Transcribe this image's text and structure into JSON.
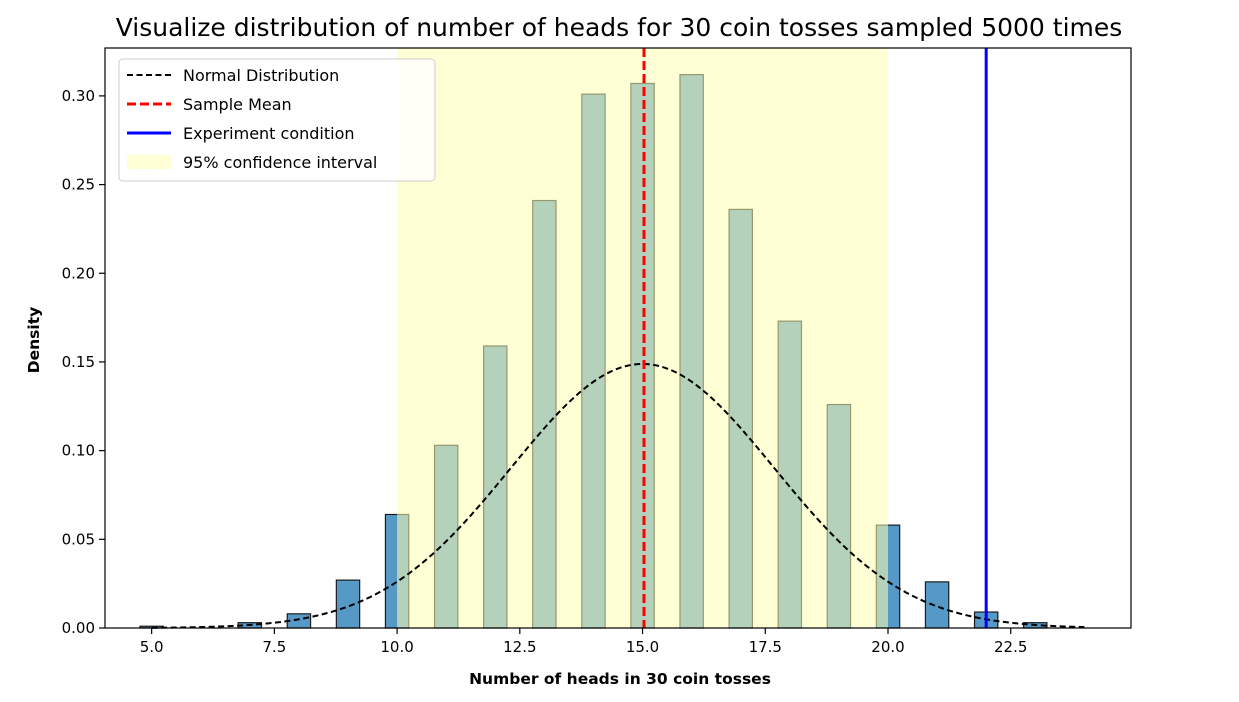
{
  "chart_data": {
    "type": "bar",
    "title": "Visualize distribution of number of heads for 30 coin tosses sampled 5000 times",
    "xlabel": "Number of heads in 30 coin tosses",
    "ylabel": "Density",
    "xlim": [
      4.05,
      24.95
    ],
    "ylim": [
      0,
      0.327
    ],
    "xticks": [
      5.0,
      7.5,
      10.0,
      12.5,
      15.0,
      17.5,
      20.0,
      22.5
    ],
    "xtick_labels": [
      "5.0",
      "7.5",
      "10.0",
      "12.5",
      "15.0",
      "17.5",
      "20.0",
      "22.5"
    ],
    "yticks": [
      0.0,
      0.05,
      0.1,
      0.15,
      0.2,
      0.25,
      0.3
    ],
    "ytick_labels": [
      "0.00",
      "0.05",
      "0.10",
      "0.15",
      "0.20",
      "0.25",
      "0.30"
    ],
    "grid": false,
    "legend_position": "top-left",
    "bar_width": 0.475,
    "histogram": {
      "x": [
        5,
        7,
        8,
        9,
        10,
        11,
        12,
        13,
        14,
        15,
        16,
        17,
        18,
        19,
        20,
        21,
        22,
        23
      ],
      "values": [
        0.001,
        0.003,
        0.008,
        0.027,
        0.064,
        0.103,
        0.159,
        0.241,
        0.301,
        0.307,
        0.312,
        0.236,
        0.173,
        0.126,
        0.058,
        0.026,
        0.009,
        0.003
      ],
      "color": "#5799c6",
      "edge_color": "#1c1c1c"
    },
    "normal_distribution": {
      "name": "Normal Distribution",
      "mean": 15.0,
      "std": 2.68,
      "x_range": [
        5,
        24
      ],
      "color": "#000000",
      "style": "dashed"
    },
    "sample_mean": {
      "name": "Sample Mean",
      "x": 15.03,
      "color": "#ff0000",
      "style": "dashed"
    },
    "experiment_condition": {
      "name": "Experiment condition",
      "x": 22,
      "color": "#0000ff",
      "style": "solid"
    },
    "confidence_interval": {
      "name": "95% confidence interval",
      "range": [
        10,
        20
      ],
      "color": "#ffffb3",
      "opacity": 0.55
    }
  }
}
